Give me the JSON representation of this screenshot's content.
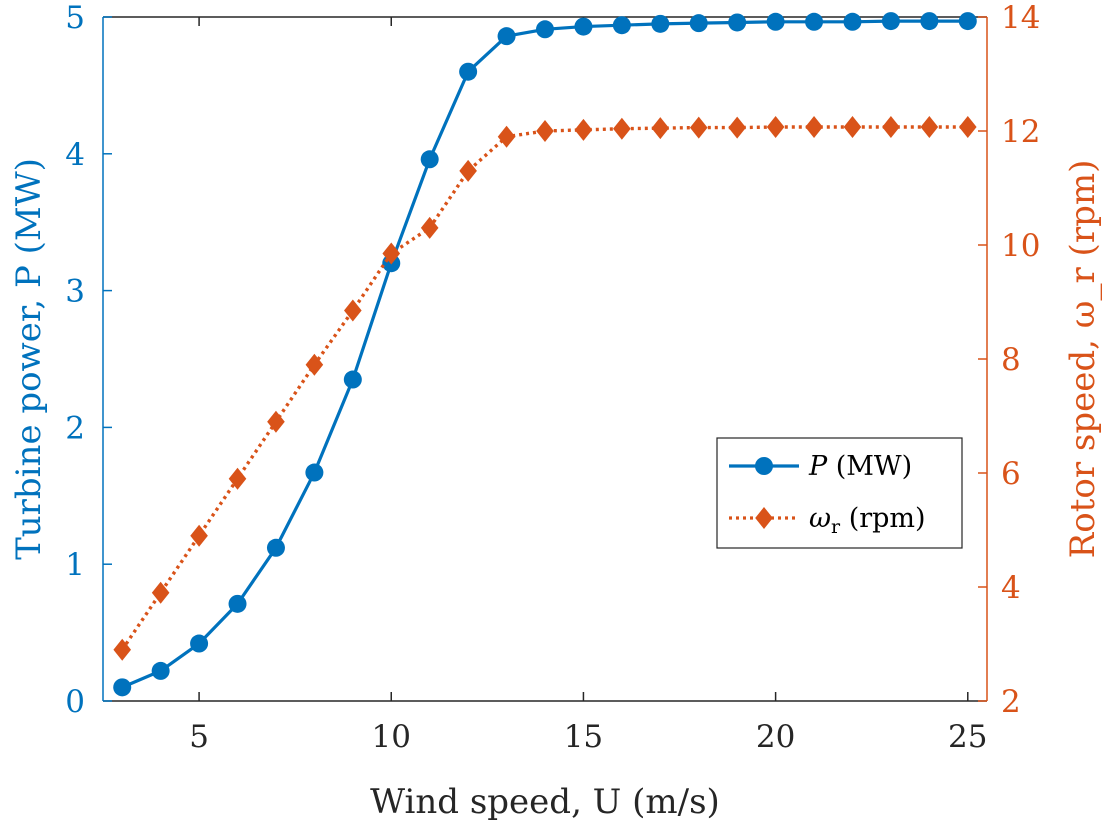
{
  "chart_data": {
    "type": "line",
    "xlabel": "Wind speed, U (m/s)",
    "ylabel_left": "Turbine power, P (MW)",
    "ylabel_right": "Rotor speed, ω_r (rpm)",
    "xlim": [
      2.5,
      25.5
    ],
    "ylim_left": [
      0,
      5
    ],
    "ylim_right": [
      2,
      14
    ],
    "xticks": [
      5,
      10,
      15,
      20,
      25
    ],
    "yticks_left": [
      0,
      1,
      2,
      3,
      4,
      5
    ],
    "yticks_right": [
      2,
      4,
      6,
      8,
      10,
      12,
      14
    ],
    "x": [
      3,
      4,
      5,
      6,
      7,
      8,
      9,
      10,
      11,
      12,
      13,
      14,
      15,
      16,
      17,
      18,
      19,
      20,
      21,
      22,
      23,
      24,
      25
    ],
    "series": [
      {
        "name": "P (MW)",
        "axis": "left",
        "color": "#0072BD",
        "marker": "circle",
        "line": "solid",
        "values": [
          0.1,
          0.22,
          0.42,
          0.71,
          1.12,
          1.67,
          2.35,
          3.2,
          3.96,
          4.6,
          4.86,
          4.91,
          4.93,
          4.94,
          4.95,
          4.955,
          4.96,
          4.965,
          4.965,
          4.965,
          4.97,
          4.97,
          4.97
        ]
      },
      {
        "name": "ω_r (rpm)",
        "axis": "right",
        "color": "#D95319",
        "marker": "diamond",
        "line": "dotted",
        "values": [
          2.9,
          3.9,
          4.9,
          5.9,
          6.9,
          7.9,
          8.85,
          9.85,
          10.3,
          11.3,
          11.9,
          12.0,
          12.02,
          12.04,
          12.05,
          12.06,
          12.06,
          12.07,
          12.07,
          12.07,
          12.07,
          12.07,
          12.07
        ]
      }
    ],
    "legend": {
      "position": "center-right",
      "entries": [
        {
          "prefix": "P",
          "suffix": " (MW)"
        },
        {
          "prefix": "ω",
          "sub": "r",
          "suffix": " (rpm)"
        }
      ]
    }
  }
}
